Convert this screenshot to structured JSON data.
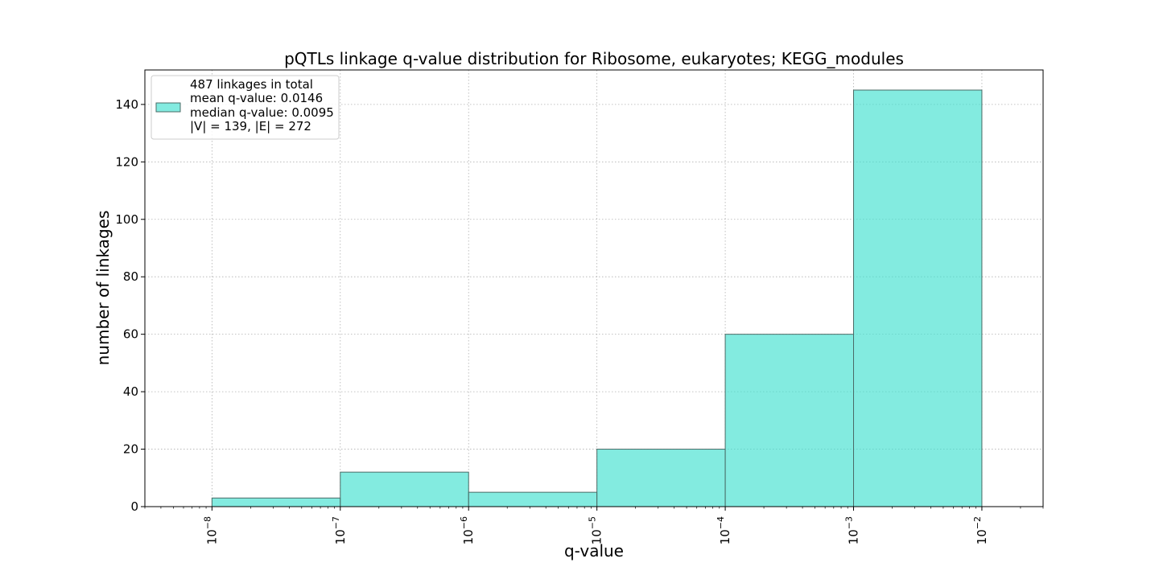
{
  "chart_data": {
    "type": "bar",
    "title": "pQTLs linkage q-value distribution for Ribosome, eukaryotes; KEGG_modules",
    "xlabel": "q-value",
    "ylabel": "number of linkages",
    "x_scale": "log",
    "xlim": [
      3e-09,
      0.03
    ],
    "ylim": [
      0,
      152
    ],
    "bins": [
      {
        "from": 1e-08,
        "to": 1e-07,
        "value": 3
      },
      {
        "from": 1e-07,
        "to": 1e-06,
        "value": 12
      },
      {
        "from": 1e-06,
        "to": 1e-05,
        "value": 5
      },
      {
        "from": 1e-05,
        "to": 0.0001,
        "value": 20
      },
      {
        "from": 0.0001,
        "to": 0.001,
        "value": 60
      },
      {
        "from": 0.001,
        "to": 0.01,
        "value": 145
      }
    ],
    "x_ticks": [
      {
        "value": 1e-08,
        "base": "10",
        "exp": "−8"
      },
      {
        "value": 1e-07,
        "base": "10",
        "exp": "−7"
      },
      {
        "value": 1e-06,
        "base": "10",
        "exp": "−6"
      },
      {
        "value": 1e-05,
        "base": "10",
        "exp": "−5"
      },
      {
        "value": 0.0001,
        "base": "10",
        "exp": "−4"
      },
      {
        "value": 0.001,
        "base": "10",
        "exp": "−3"
      },
      {
        "value": 0.01,
        "base": "10",
        "exp": "−2"
      }
    ],
    "y_ticks": [
      0,
      20,
      40,
      60,
      80,
      100,
      120,
      140
    ],
    "grid": true,
    "legend": {
      "placement": "upper-left",
      "lines": [
        "487 linkages in total",
        "mean q-value: 0.0146",
        "median q-value: 0.0095",
        "|V| = 139, |E| = 272"
      ]
    },
    "colors": {
      "bar_fill": "#40e0d0",
      "bar_fill_opacity": 0.65,
      "bar_edge": "#4a6b66"
    }
  }
}
